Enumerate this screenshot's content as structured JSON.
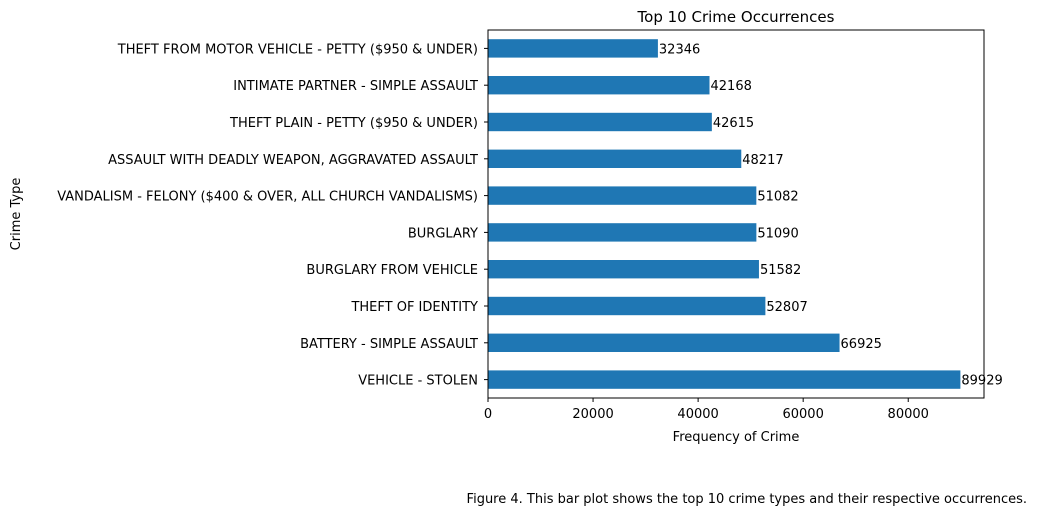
{
  "chart_data": {
    "type": "bar",
    "orientation": "horizontal",
    "title": "Top 10 Crime Occurrences",
    "xlabel": "Frequency of Crime",
    "ylabel": "Crime Type",
    "categories": [
      "VEHICLE - STOLEN",
      "BATTERY - SIMPLE ASSAULT",
      "THEFT OF IDENTITY",
      "BURGLARY FROM VEHICLE",
      "BURGLARY",
      "VANDALISM - FELONY ($400 & OVER, ALL CHURCH VANDALISMS)",
      "ASSAULT WITH DEADLY WEAPON, AGGRAVATED ASSAULT",
      "THEFT PLAIN - PETTY ($950 & UNDER)",
      "INTIMATE PARTNER - SIMPLE ASSAULT",
      "THEFT FROM MOTOR VEHICLE - PETTY ($950 & UNDER)"
    ],
    "values": [
      89929,
      66925,
      52807,
      51582,
      51090,
      51082,
      48217,
      42615,
      42168,
      32346
    ],
    "xlim": [
      0,
      94425
    ],
    "xticks": [
      0,
      20000,
      40000,
      60000,
      80000
    ],
    "bar_color": "#1f77b4",
    "data_labels": true,
    "grid": false,
    "legend": "none"
  },
  "caption": "Figure 4. This bar plot shows the top 10 crime types and their respective occurrences."
}
